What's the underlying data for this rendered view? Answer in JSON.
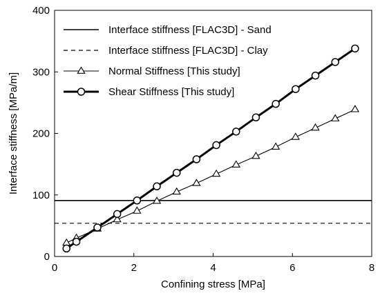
{
  "chart_data": {
    "type": "line",
    "xlabel": "Confining stress [MPa]",
    "ylabel": "Interface stiffness [MPa/m]",
    "xlim": [
      0,
      8
    ],
    "ylim": [
      0,
      400
    ],
    "xticks": [
      "0",
      "2",
      "4",
      "6",
      "8"
    ],
    "yticks": [
      "0",
      "100",
      "200",
      "300",
      "400"
    ],
    "grid": false,
    "legend_position": "top-left",
    "series": [
      {
        "name": "Interface stiffness [FLAC3D] - Sand",
        "style": "solid-horizontal",
        "x": [
          0,
          8
        ],
        "y": [
          91,
          91
        ]
      },
      {
        "name": "Interface stiffness [FLAC3D] - Clay",
        "style": "dashed-horizontal",
        "x": [
          0,
          8
        ],
        "y": [
          54,
          54
        ]
      },
      {
        "name": "Normal Stiffness [This study]",
        "style": "thin-triangle",
        "x": [
          0.3,
          0.55,
          1.08,
          1.58,
          2.08,
          2.58,
          3.08,
          3.58,
          4.08,
          4.58,
          5.08,
          5.58,
          6.08,
          6.58,
          7.08,
          7.58
        ],
        "y": [
          22,
          30,
          45,
          60,
          74,
          90,
          105,
          119,
          134,
          149,
          163,
          178,
          194,
          209,
          224,
          239
        ]
      },
      {
        "name": "Shear Stiffness [This study]",
        "style": "thick-circle",
        "x": [
          0.3,
          0.55,
          1.08,
          1.58,
          2.08,
          2.58,
          3.08,
          3.58,
          4.08,
          4.58,
          5.08,
          5.58,
          6.08,
          6.58,
          7.08,
          7.58
        ],
        "y": [
          13,
          24,
          47,
          69,
          91,
          114,
          136,
          158,
          181,
          203,
          226,
          248,
          272,
          294,
          316,
          338
        ]
      }
    ]
  }
}
